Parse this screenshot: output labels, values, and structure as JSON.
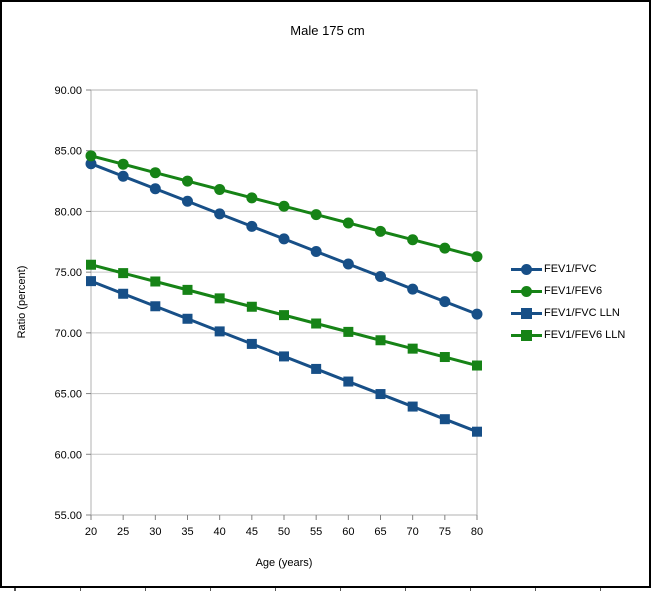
{
  "chart_data": {
    "type": "line",
    "title": "Male 175 cm",
    "xlabel": "Age (years)",
    "ylabel": "Ratio (percent)",
    "x": [
      20,
      25,
      30,
      35,
      40,
      45,
      50,
      55,
      60,
      65,
      70,
      75,
      80
    ],
    "xlim": [
      20,
      80
    ],
    "ylim": [
      55,
      90
    ],
    "ytick_step": 5,
    "xtick_labels": [
      "20",
      "25",
      "30",
      "35",
      "40",
      "45",
      "50",
      "55",
      "60",
      "65",
      "70",
      "75",
      "80"
    ],
    "ytick_labels": [
      "55.00",
      "60.00",
      "65.00",
      "70.00",
      "75.00",
      "80.00",
      "85.00",
      "90.00"
    ],
    "grid": "horizontal",
    "legend_position": "right",
    "colors": {
      "blue": "#174f87",
      "green": "#168316",
      "gridline": "#c6c6c6",
      "plot_border": "#b0b0b0",
      "tick": "#808080"
    },
    "series": [
      {
        "name": "FEV1/FVC",
        "color": "#174f87",
        "marker": "circle",
        "values": [
          83.93,
          82.9,
          81.87,
          80.84,
          79.8,
          78.77,
          77.74,
          76.7,
          75.67,
          74.64,
          73.6,
          72.57,
          71.54
        ]
      },
      {
        "name": "FEV1/FEV6",
        "color": "#168316",
        "marker": "circle",
        "values": [
          84.58,
          83.89,
          83.19,
          82.5,
          81.81,
          81.12,
          80.43,
          79.74,
          79.05,
          78.36,
          77.67,
          76.98,
          76.28
        ]
      },
      {
        "name": "FEV1/FVC LLN",
        "color": "#174f87",
        "marker": "square",
        "values": [
          74.26,
          73.22,
          72.19,
          71.16,
          70.12,
          69.09,
          68.06,
          67.03,
          65.99,
          64.96,
          63.93,
          62.89,
          61.86
        ]
      },
      {
        "name": "FEV1/FEV6 LLN",
        "color": "#168316",
        "marker": "square",
        "values": [
          75.61,
          74.92,
          74.23,
          73.54,
          72.84,
          72.15,
          71.46,
          70.77,
          70.08,
          69.39,
          68.7,
          68.01,
          67.31
        ]
      }
    ]
  }
}
